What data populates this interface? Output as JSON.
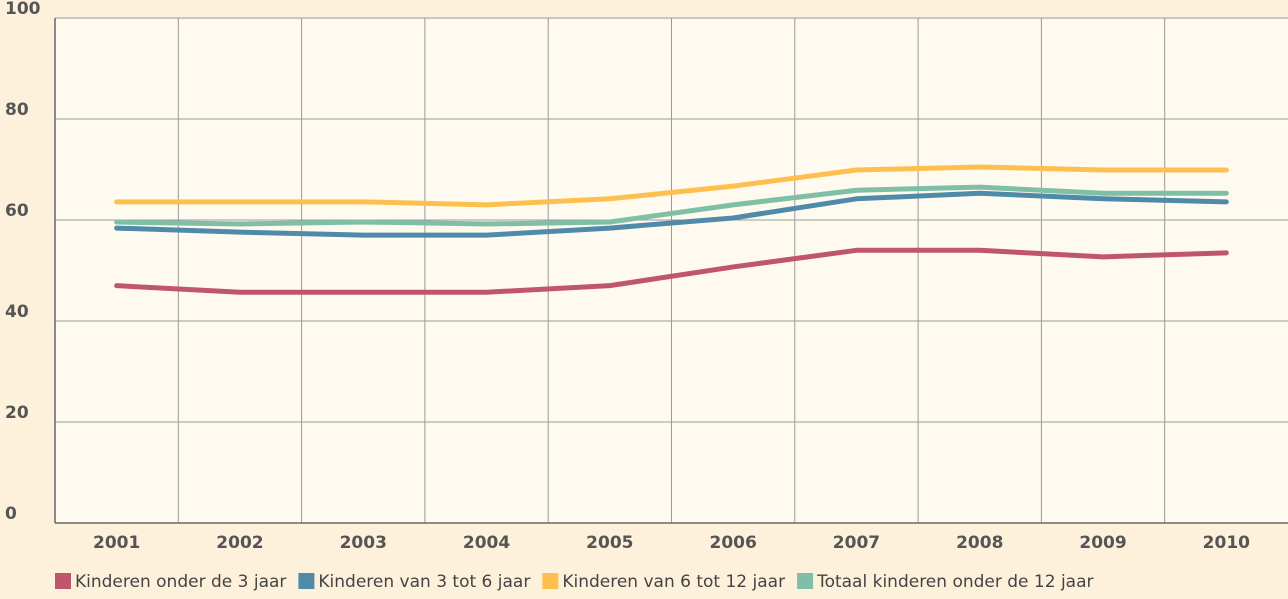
{
  "chart_data": {
    "type": "line",
    "categories": [
      "2001",
      "2002",
      "2003",
      "2004",
      "2005",
      "2006",
      "2007",
      "2008",
      "2009",
      "2010"
    ],
    "series": [
      {
        "name": "Kinderen onder de 3 jaar",
        "color": "#c0566e",
        "values": [
          47,
          45.7,
          45.7,
          45.7,
          47,
          50.7,
          54,
          54,
          52.7,
          53.5
        ]
      },
      {
        "name": "Kinderen van 3 tot 6 jaar",
        "color": "#4f8ba8",
        "values": [
          58.4,
          57.6,
          57,
          57,
          58.4,
          60.4,
          64.2,
          65.3,
          64.2,
          63.6
        ]
      },
      {
        "name": "Kinderen van 6 tot 12 jaar",
        "color": "#fdc04f",
        "values": [
          63.6,
          63.6,
          63.6,
          63,
          64.2,
          66.7,
          69.9,
          70.5,
          69.9,
          69.9
        ]
      },
      {
        "name": "Totaal kinderen onder de 12 jaar",
        "color": "#7fbfa5",
        "values": [
          59.6,
          59.2,
          59.6,
          59.2,
          59.6,
          63,
          65.9,
          66.5,
          65.3,
          65.3
        ]
      }
    ],
    "ylim": [
      0,
      100
    ],
    "yticks": [
      0,
      20,
      40,
      60,
      80,
      100
    ],
    "grid": true
  }
}
